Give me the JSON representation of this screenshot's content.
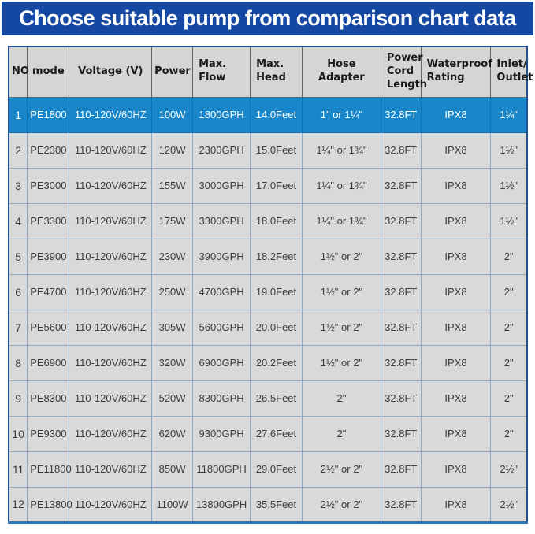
{
  "banner": {
    "title": "Choose suitable pump from comparison chart data"
  },
  "colors": {
    "banner_bg": "#1548a3",
    "banner_text": "#ffffff",
    "header_bg": "#d5d5d5",
    "row_bg": "#d9d9d9",
    "highlight_bg": "#1886c8",
    "highlight_text": "#ffffff",
    "grid_line": "#92a9c6",
    "outer_border": "#20508f",
    "bottom_border": "#2e75b6"
  },
  "table": {
    "columns": [
      {
        "key": "no",
        "label": "NO"
      },
      {
        "key": "mode",
        "label": "mode"
      },
      {
        "key": "voltage",
        "label": "Voltage (V)"
      },
      {
        "key": "power",
        "label": "Power"
      },
      {
        "key": "max_flow",
        "label": "Max. Flow"
      },
      {
        "key": "max_head",
        "label": "Max. Head"
      },
      {
        "key": "hose_adapter",
        "label": "Hose Adapter"
      },
      {
        "key": "power_cord_length",
        "label": "Power Cord Length"
      },
      {
        "key": "waterproof_rating",
        "label": "Waterproof Rating"
      },
      {
        "key": "inlet_outlet",
        "label": "Inlet/ Outlet"
      }
    ],
    "highlighted_row_no": "1",
    "rows": [
      {
        "no": "1",
        "mode": "PE1800",
        "voltage": "110-120V/60HZ",
        "power": "100W",
        "max_flow": "1800GPH",
        "max_head": "14.0Feet",
        "hose_adapter": "1\" or 1¼\"",
        "power_cord_length": "32.8FT",
        "waterproof_rating": "IPX8",
        "inlet_outlet": "1¼\"",
        "highlight": true
      },
      {
        "no": "2",
        "mode": "PE2300",
        "voltage": "110-120V/60HZ",
        "power": "120W",
        "max_flow": "2300GPH",
        "max_head": "15.0Feet",
        "hose_adapter": "1¼\" or 1¾\"",
        "power_cord_length": "32.8FT",
        "waterproof_rating": "IPX8",
        "inlet_outlet": "1½\"",
        "highlight": false
      },
      {
        "no": "3",
        "mode": "PE3000",
        "voltage": "110-120V/60HZ",
        "power": "155W",
        "max_flow": "3000GPH",
        "max_head": "17.0Feet",
        "hose_adapter": "1¼\" or 1¾\"",
        "power_cord_length": "32.8FT",
        "waterproof_rating": "IPX8",
        "inlet_outlet": "1½\"",
        "highlight": false
      },
      {
        "no": "4",
        "mode": "PE3300",
        "voltage": "110-120V/60HZ",
        "power": "175W",
        "max_flow": "3300GPH",
        "max_head": "18.0Feet",
        "hose_adapter": "1¼\" or 1¾\"",
        "power_cord_length": "32.8FT",
        "waterproof_rating": "IPX8",
        "inlet_outlet": "1½\"",
        "highlight": false
      },
      {
        "no": "5",
        "mode": "PE3900",
        "voltage": "110-120V/60HZ",
        "power": "230W",
        "max_flow": "3900GPH",
        "max_head": "18.2Feet",
        "hose_adapter": "1½\" or 2\"",
        "power_cord_length": "32.8FT",
        "waterproof_rating": "IPX8",
        "inlet_outlet": "2\"",
        "highlight": false
      },
      {
        "no": "6",
        "mode": "PE4700",
        "voltage": "110-120V/60HZ",
        "power": "250W",
        "max_flow": "4700GPH",
        "max_head": "19.0Feet",
        "hose_adapter": "1½\" or 2\"",
        "power_cord_length": "32.8FT",
        "waterproof_rating": "IPX8",
        "inlet_outlet": "2\"",
        "highlight": false
      },
      {
        "no": "7",
        "mode": "PE5600",
        "voltage": "110-120V/60HZ",
        "power": "305W",
        "max_flow": "5600GPH",
        "max_head": "20.0Feet",
        "hose_adapter": "1½\" or 2\"",
        "power_cord_length": "32.8FT",
        "waterproof_rating": "IPX8",
        "inlet_outlet": "2\"",
        "highlight": false
      },
      {
        "no": "8",
        "mode": "PE6900",
        "voltage": "110-120V/60HZ",
        "power": "320W",
        "max_flow": "6900GPH",
        "max_head": "20.2Feet",
        "hose_adapter": "1½\" or 2\"",
        "power_cord_length": "32.8FT",
        "waterproof_rating": "IPX8",
        "inlet_outlet": "2\"",
        "highlight": false
      },
      {
        "no": "9",
        "mode": "PE8300",
        "voltage": "110-120V/60HZ",
        "power": "520W",
        "max_flow": "8300GPH",
        "max_head": "26.5Feet",
        "hose_adapter": "2\"",
        "power_cord_length": "32.8FT",
        "waterproof_rating": "IPX8",
        "inlet_outlet": "2\"",
        "highlight": false
      },
      {
        "no": "10",
        "mode": "PE9300",
        "voltage": "110-120V/60HZ",
        "power": "620W",
        "max_flow": "9300GPH",
        "max_head": "27.6Feet",
        "hose_adapter": "2\"",
        "power_cord_length": "32.8FT",
        "waterproof_rating": "IPX8",
        "inlet_outlet": "2\"",
        "highlight": false
      },
      {
        "no": "11",
        "mode": "PE11800",
        "voltage": "110-120V/60HZ",
        "power": "850W",
        "max_flow": "11800GPH",
        "max_head": "29.0Feet",
        "hose_adapter": "2½\" or 2\"",
        "power_cord_length": "32.8FT",
        "waterproof_rating": "IPX8",
        "inlet_outlet": "2½\"",
        "highlight": false
      },
      {
        "no": "12",
        "mode": "PE13800",
        "voltage": "110-120V/60HZ",
        "power": "1100W",
        "max_flow": "13800GPH",
        "max_head": "35.5Feet",
        "hose_adapter": "2½\" or 2\"",
        "power_cord_length": "32.8FT",
        "waterproof_rating": "IPX8",
        "inlet_outlet": "2½\"",
        "highlight": false
      }
    ]
  }
}
